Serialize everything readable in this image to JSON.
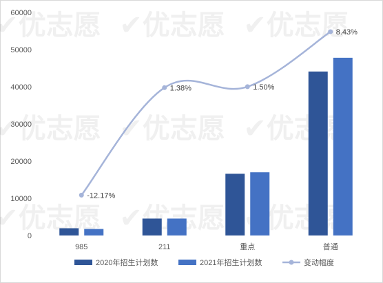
{
  "chart_data": {
    "type": "bar",
    "categories": [
      "985",
      "211",
      "重点",
      "普通"
    ],
    "series": [
      {
        "name": "2020年招生计划数",
        "type": "bar",
        "color": "#2f5597",
        "values": [
          1950,
          4550,
          16600,
          44100
        ]
      },
      {
        "name": "2021年招生计划数",
        "type": "bar",
        "color": "#4472c4",
        "values": [
          1750,
          4550,
          17000,
          47800
        ]
      },
      {
        "name": "变动幅度",
        "type": "line",
        "smooth": true,
        "color": "#a5b4d9",
        "values": [
          -12.17,
          1.38,
          1.5,
          8.43
        ],
        "labels": [
          "-12.17%",
          "1.38%",
          "1.50%",
          "8.43%"
        ]
      }
    ],
    "y_ticks": [
      "0",
      "10000",
      "20000",
      "30000",
      "40000",
      "50000",
      "60000"
    ],
    "ylim": [
      0,
      60000
    ],
    "grid": false,
    "legend_position": "bottom",
    "watermark": "优志愿"
  }
}
